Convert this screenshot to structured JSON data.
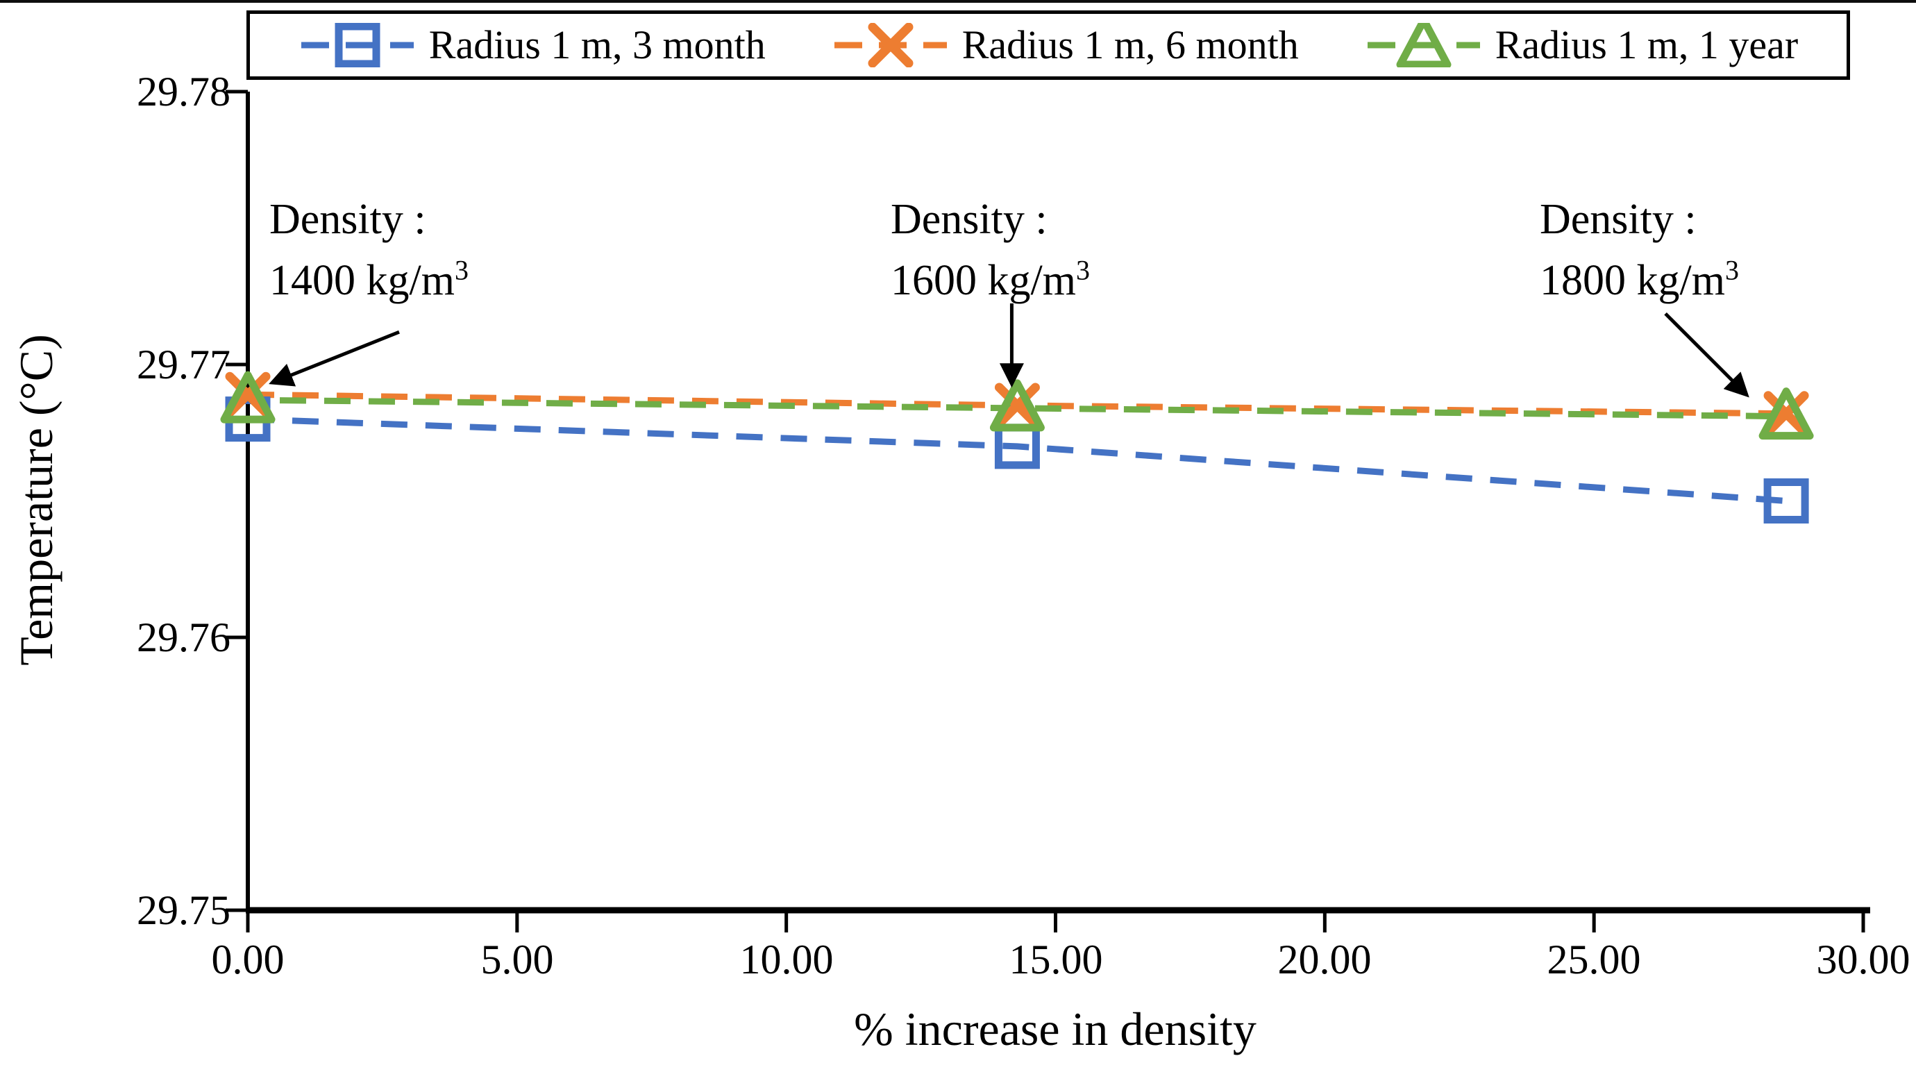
{
  "chart_data": {
    "type": "line",
    "title": "",
    "xlabel": "% increase in density",
    "ylabel": "Temperature (°C)",
    "xlim": [
      0,
      30
    ],
    "ylim": [
      29.75,
      29.78
    ],
    "grid": false,
    "legend_position": "top",
    "xtick_labels": [
      "0.00",
      "5.00",
      "10.00",
      "15.00",
      "20.00",
      "25.00",
      "30.00"
    ],
    "xtick_values": [
      0,
      5,
      10,
      15,
      20,
      25,
      30
    ],
    "ytick_labels": [
      "29.75",
      "29.76",
      "29.77",
      "29.78"
    ],
    "ytick_values": [
      29.75,
      29.76,
      29.77,
      29.78
    ],
    "x_values": [
      0,
      14.29,
      28.57
    ],
    "series": [
      {
        "name": "Radius 1 m, 3 month",
        "color": "#4472C4",
        "marker": "square",
        "linestyle": "dashed",
        "values": [
          29.768,
          29.767,
          29.765
        ]
      },
      {
        "name": "Radius 1 m, 6 month",
        "color": "#ED7D31",
        "marker": "x",
        "linestyle": "dashed",
        "values": [
          29.7689,
          29.7685,
          29.7682
        ]
      },
      {
        "name": "Radius 1 m, 1 year",
        "color": "#70AD47",
        "marker": "triangle",
        "linestyle": "dashed",
        "values": [
          29.7687,
          29.7684,
          29.7681
        ]
      }
    ],
    "annotations": [
      {
        "line1": "Density :",
        "line2": "1400 kg/m",
        "sup": "3",
        "x": 0,
        "y": 29.7689
      },
      {
        "line1": "Density :",
        "line2": "1600 kg/m",
        "sup": "3",
        "x": 14.29,
        "y": 29.7685
      },
      {
        "line1": "Density :",
        "line2": "1800 kg/m",
        "sup": "3",
        "x": 28.57,
        "y": 29.7682
      }
    ]
  }
}
